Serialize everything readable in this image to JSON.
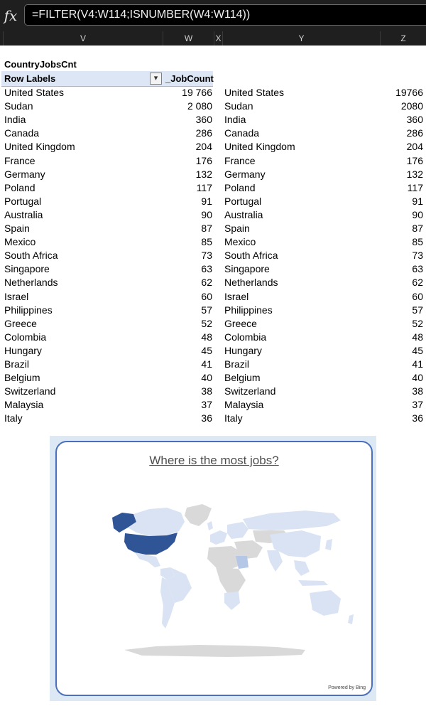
{
  "formula_bar": {
    "fx": "fx",
    "formula": "=FILTER(V4:W114;ISNUMBER(W4:W114))"
  },
  "columns": [
    "V",
    "W",
    "X",
    "Y",
    "Z"
  ],
  "pivot": {
    "title": "CountryJobsCnt",
    "header_row_labels": "Row Labels",
    "header_value": "_JobCount",
    "sort_icon": "sort-descending-icon",
    "rows": [
      {
        "country": "United States",
        "count": "19 766"
      },
      {
        "country": "Sudan",
        "count": "2 080"
      },
      {
        "country": "India",
        "count": "360"
      },
      {
        "country": "Canada",
        "count": "286"
      },
      {
        "country": "United Kingdom",
        "count": "204"
      },
      {
        "country": "France",
        "count": "176"
      },
      {
        "country": "Germany",
        "count": "132"
      },
      {
        "country": "Poland",
        "count": "117"
      },
      {
        "country": "Portugal",
        "count": "91"
      },
      {
        "country": "Australia",
        "count": "90"
      },
      {
        "country": "Spain",
        "count": "87"
      },
      {
        "country": "Mexico",
        "count": "85"
      },
      {
        "country": "South Africa",
        "count": "73"
      },
      {
        "country": "Singapore",
        "count": "63"
      },
      {
        "country": "Netherlands",
        "count": "62"
      },
      {
        "country": "Israel",
        "count": "60"
      },
      {
        "country": "Philippines",
        "count": "57"
      },
      {
        "country": "Greece",
        "count": "52"
      },
      {
        "country": "Colombia",
        "count": "48"
      },
      {
        "country": "Hungary",
        "count": "45"
      },
      {
        "country": "Brazil",
        "count": "41"
      },
      {
        "country": "Belgium",
        "count": "40"
      },
      {
        "country": "Switzerland",
        "count": "38"
      },
      {
        "country": "Malaysia",
        "count": "37"
      },
      {
        "country": "Italy",
        "count": "36"
      }
    ]
  },
  "filtered": {
    "rows": [
      {
        "country": "United States",
        "count": "19766"
      },
      {
        "country": "Sudan",
        "count": "2080"
      },
      {
        "country": "India",
        "count": "360"
      },
      {
        "country": "Canada",
        "count": "286"
      },
      {
        "country": "United Kingdom",
        "count": "204"
      },
      {
        "country": "France",
        "count": "176"
      },
      {
        "country": "Germany",
        "count": "132"
      },
      {
        "country": "Poland",
        "count": "117"
      },
      {
        "country": "Portugal",
        "count": "91"
      },
      {
        "country": "Australia",
        "count": "90"
      },
      {
        "country": "Spain",
        "count": "87"
      },
      {
        "country": "Mexico",
        "count": "85"
      },
      {
        "country": "South Africa",
        "count": "73"
      },
      {
        "country": "Singapore",
        "count": "63"
      },
      {
        "country": "Netherlands",
        "count": "62"
      },
      {
        "country": "Israel",
        "count": "60"
      },
      {
        "country": "Philippines",
        "count": "57"
      },
      {
        "country": "Greece",
        "count": "52"
      },
      {
        "country": "Colombia",
        "count": "48"
      },
      {
        "country": "Hungary",
        "count": "45"
      },
      {
        "country": "Brazil",
        "count": "41"
      },
      {
        "country": "Belgium",
        "count": "40"
      },
      {
        "country": "Switzerland",
        "count": "38"
      },
      {
        "country": "Malaysia",
        "count": "37"
      },
      {
        "country": "Italy",
        "count": "36"
      }
    ]
  },
  "map_chart": {
    "title": "Where is the most jobs?",
    "credit": "Powered by Bing",
    "colors": {
      "high": "#2f5597",
      "medium": "#b4c7e7",
      "low": "#dae3f3",
      "none": "#d9d9d9",
      "border": "#4a6fbf"
    }
  }
}
